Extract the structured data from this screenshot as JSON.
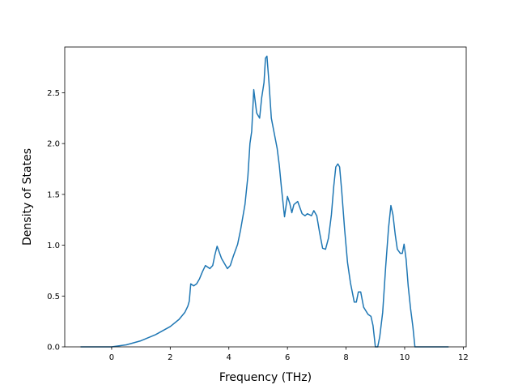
{
  "chart_data": {
    "type": "line",
    "title": "",
    "xlabel": "Frequency (THz)",
    "ylabel": "Density of States",
    "xlim": [
      -1.6,
      12.1
    ],
    "ylim": [
      0.0,
      2.95
    ],
    "xticks": [
      0,
      2,
      4,
      6,
      8,
      10,
      12
    ],
    "xtick_labels": [
      "0",
      "2",
      "4",
      "6",
      "8",
      "10",
      "12"
    ],
    "yticks": [
      0.0,
      0.5,
      1.0,
      1.5,
      2.0,
      2.5
    ],
    "ytick_labels": [
      "0.0",
      "0.5",
      "1.0",
      "1.5",
      "2.0",
      "2.5"
    ],
    "grid": false,
    "legend": "none",
    "line_color": "#1f77b4",
    "series": [
      {
        "x": [
          -1.06,
          0.0,
          0.5,
          1.0,
          1.5,
          2.0,
          2.3,
          2.5,
          2.6,
          2.65,
          2.7,
          2.8,
          2.9,
          3.0,
          3.1,
          3.2,
          3.35,
          3.45,
          3.52,
          3.6,
          3.75,
          3.85,
          3.95,
          4.05,
          4.15,
          4.3,
          4.4,
          4.55,
          4.65,
          4.72,
          4.78,
          4.85,
          4.95,
          5.05,
          5.12,
          5.2,
          5.25,
          5.3,
          5.37,
          5.45,
          5.55,
          5.65,
          5.72,
          5.8,
          5.9,
          6.0,
          6.08,
          6.15,
          6.22,
          6.35,
          6.5,
          6.6,
          6.68,
          6.75,
          6.82,
          6.9,
          7.0,
          7.1,
          7.2,
          7.3,
          7.4,
          7.5,
          7.58,
          7.65,
          7.72,
          7.78,
          7.85,
          7.95,
          8.05,
          8.15,
          8.28,
          8.35,
          8.42,
          8.5,
          8.6,
          8.75,
          8.85,
          8.92,
          9.0,
          9.08,
          9.15,
          9.25,
          9.35,
          9.45,
          9.53,
          9.6,
          9.68,
          9.75,
          9.85,
          9.92,
          9.98,
          10.05,
          10.12,
          10.2,
          10.28,
          10.35,
          10.42,
          10.48,
          11.5
        ],
        "y": [
          0.0,
          0.0,
          0.02,
          0.06,
          0.12,
          0.2,
          0.27,
          0.34,
          0.4,
          0.45,
          0.62,
          0.6,
          0.62,
          0.67,
          0.74,
          0.8,
          0.77,
          0.8,
          0.9,
          0.99,
          0.87,
          0.82,
          0.77,
          0.8,
          0.89,
          1.01,
          1.15,
          1.4,
          1.68,
          2.0,
          2.12,
          2.53,
          2.3,
          2.25,
          2.45,
          2.6,
          2.84,
          2.86,
          2.6,
          2.25,
          2.1,
          1.95,
          1.79,
          1.55,
          1.28,
          1.48,
          1.41,
          1.32,
          1.4,
          1.43,
          1.31,
          1.29,
          1.31,
          1.3,
          1.29,
          1.34,
          1.29,
          1.12,
          0.97,
          0.96,
          1.07,
          1.3,
          1.58,
          1.77,
          1.8,
          1.77,
          1.54,
          1.16,
          0.83,
          0.63,
          0.44,
          0.44,
          0.54,
          0.54,
          0.39,
          0.32,
          0.3,
          0.21,
          0.0,
          0.0,
          0.1,
          0.34,
          0.78,
          1.17,
          1.39,
          1.3,
          1.1,
          0.96,
          0.92,
          0.92,
          1.01,
          0.86,
          0.6,
          0.38,
          0.2,
          0.0,
          0.0,
          0.0,
          0.0
        ]
      }
    ]
  }
}
